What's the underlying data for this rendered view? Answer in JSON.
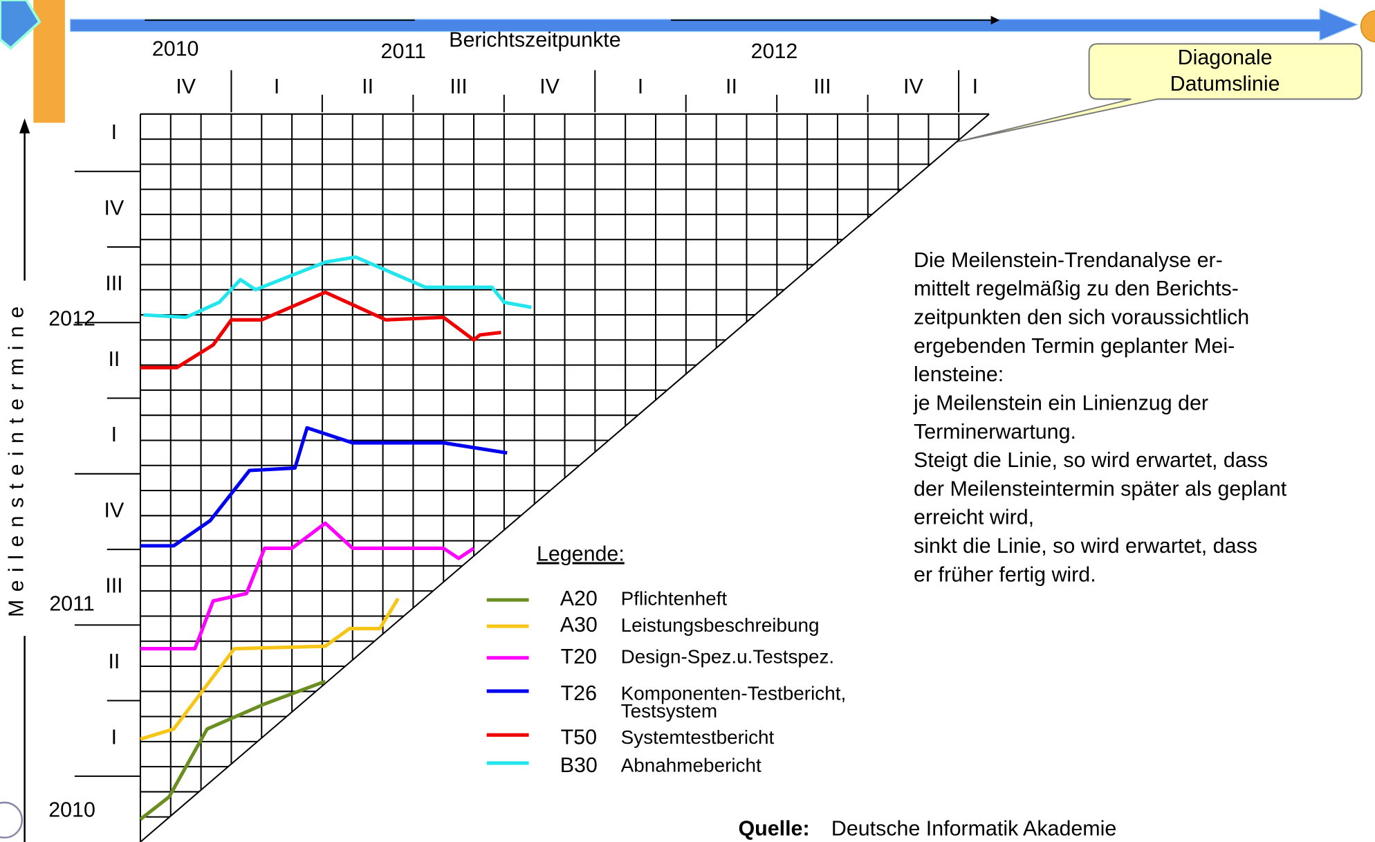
{
  "chart_data": {
    "type": "line",
    "title": "Berichtszeitpunkte",
    "ylabel": "Meilensteintermine",
    "x_years": [
      "2010",
      "2011",
      "2012"
    ],
    "x_quarters": [
      "IV",
      "I",
      "II",
      "III",
      "IV",
      "I",
      "II",
      "III",
      "IV",
      "I"
    ],
    "y_years": [
      "2010",
      "2011",
      "2012"
    ],
    "y_quarters": [
      "I",
      "II",
      "III",
      "IV",
      "I",
      "II",
      "III",
      "IV",
      "I"
    ],
    "xlim": [
      0,
      28
    ],
    "ylim": [
      0,
      29
    ],
    "legend_title": "Legende:",
    "series": [
      {
        "code": "A20",
        "name": "Pflichtenheft",
        "color": "#6b8e23",
        "x": [
          0,
          0.95,
          2.2,
          4.1,
          6.1
        ],
        "values": [
          0.9,
          1.8,
          4.5,
          5.5,
          6.4
        ]
      },
      {
        "code": "A30",
        "name": "Leistungsbeschreibung",
        "color": "#f5c518",
        "x": [
          0,
          1.1,
          3.1,
          6.1,
          6.9,
          7.9,
          8.5
        ],
        "values": [
          4.1,
          4.5,
          7.7,
          7.8,
          8.5,
          8.5,
          9.7
        ]
      },
      {
        "code": "T20",
        "name": "Design-Spez.u.Testspez.",
        "color": "#ff00ff",
        "x": [
          0,
          1.8,
          2.4,
          3.5,
          4.1,
          5,
          6.1,
          7,
          10,
          10.5,
          11
        ],
        "values": [
          7.7,
          7.7,
          9.6,
          9.9,
          11.7,
          11.7,
          12.7,
          11.7,
          11.7,
          11.3,
          11.7
        ]
      },
      {
        "code": "T26",
        "name": "Komponenten-Testbericht, Testsystem",
        "color": "#0000ee",
        "x": [
          0,
          1.1,
          2.3,
          3.6,
          5.1,
          5.5,
          7,
          10,
          12.1
        ],
        "values": [
          11.8,
          11.8,
          12.8,
          14.8,
          14.9,
          16.5,
          15.9,
          15.9,
          15.5
        ]
      },
      {
        "code": "T50",
        "name": "Systemtestbericht",
        "color": "#ee0000",
        "x": [
          0,
          1.2,
          2.4,
          3,
          4,
          6.1,
          8.1,
          10,
          11,
          11.2,
          11.9
        ],
        "values": [
          18.9,
          18.9,
          19.8,
          20.8,
          20.8,
          21.9,
          20.8,
          20.9,
          20,
          20.2,
          20.3
        ]
      },
      {
        "code": "B30",
        "name": "Abnahmebericht",
        "color": "#22e5ee",
        "x": [
          0.1,
          1.5,
          2.6,
          3.3,
          3.8,
          6.1,
          7.1,
          9.4,
          11.6,
          12,
          12.9
        ],
        "values": [
          21,
          20.9,
          21.5,
          22.4,
          22,
          23.1,
          23.3,
          22.1,
          22.1,
          21.5,
          21.3
        ]
      }
    ]
  },
  "callout": [
    "Diagonale",
    "Datumslinie"
  ],
  "paragraph": [
    "Die Meilenstein-Trendanalyse er-",
    "mittelt regelmäßig zu den Berichts-",
    "zeitpunkten den sich voraussichtlich",
    "ergebenden Termin geplanter Mei-",
    "lensteine:",
    "je Meilenstein ein Linienzug der",
    "Terminerwartung.",
    "Steigt die Linie, so wird erwartet, dass",
    "der Meilensteintermin später als geplant",
    "erreicht wird,",
    "sinkt die Linie, so wird erwartet, dass",
    "er früher fertig wird."
  ],
  "source": {
    "label": "Quelle:",
    "text": "Deutsche Informatik Akademie"
  }
}
